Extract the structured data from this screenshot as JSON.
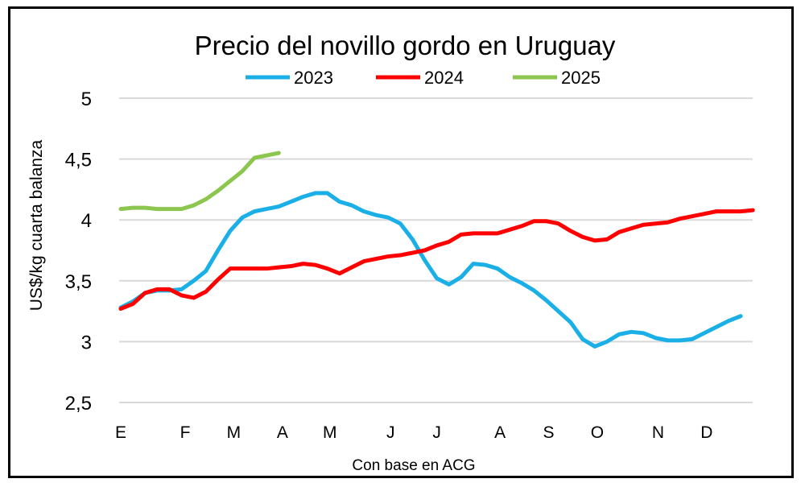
{
  "chart_data": {
    "type": "line",
    "title": "Precio del novillo gordo en Uruguay",
    "xlabel": "Con base en ACG",
    "ylabel": "US$/kg cuarta balanza",
    "ylim": [
      2.5,
      5
    ],
    "yticks": [
      "2,5",
      "3",
      "3,5",
      "4",
      "4,5",
      "5"
    ],
    "ytick_values": [
      2.5,
      3,
      3.5,
      4,
      4.5,
      5
    ],
    "xlim_weeks": [
      0,
      52
    ],
    "xticks": [
      {
        "label": "E",
        "week": 0
      },
      {
        "label": "F",
        "week": 5.3
      },
      {
        "label": "M",
        "week": 9.3
      },
      {
        "label": "A",
        "week": 13.3
      },
      {
        "label": "M",
        "week": 17.2
      },
      {
        "label": "J",
        "week": 22.2
      },
      {
        "label": "J",
        "week": 26
      },
      {
        "label": "A",
        "week": 31.2
      },
      {
        "label": "S",
        "week": 35.2
      },
      {
        "label": "O",
        "week": 39.2
      },
      {
        "label": "N",
        "week": 44.2
      },
      {
        "label": "D",
        "week": 48.2
      }
    ],
    "grid": "horizontal",
    "legend_position": "top",
    "series": [
      {
        "name": "2023",
        "color": "#1aafe6",
        "values": [
          3.28,
          3.33,
          3.4,
          3.42,
          3.42,
          3.43,
          3.5,
          3.58,
          3.75,
          3.91,
          4.02,
          4.07,
          4.09,
          4.11,
          4.15,
          4.19,
          4.22,
          4.22,
          4.15,
          4.12,
          4.07,
          4.04,
          4.02,
          3.97,
          3.84,
          3.67,
          3.52,
          3.47,
          3.53,
          3.64,
          3.63,
          3.6,
          3.53,
          3.48,
          3.42,
          3.34,
          3.25,
          3.16,
          3.02,
          2.96,
          3.0,
          3.06,
          3.08,
          3.07,
          3.03,
          3.01,
          3.01,
          3.02,
          3.07,
          3.12,
          3.17,
          3.21
        ]
      },
      {
        "name": "2024",
        "color": "#ff0000",
        "values": [
          3.27,
          3.31,
          3.4,
          3.43,
          3.43,
          3.38,
          3.36,
          3.41,
          3.51,
          3.6,
          3.6,
          3.6,
          3.6,
          3.61,
          3.62,
          3.64,
          3.63,
          3.6,
          3.56,
          3.61,
          3.66,
          3.68,
          3.7,
          3.71,
          3.73,
          3.75,
          3.79,
          3.82,
          3.88,
          3.89,
          3.89,
          3.89,
          3.92,
          3.95,
          3.99,
          3.99,
          3.97,
          3.91,
          3.86,
          3.83,
          3.84,
          3.9,
          3.93,
          3.96,
          3.97,
          3.98,
          4.01,
          4.03,
          4.05,
          4.07,
          4.07,
          4.07,
          4.08
        ]
      },
      {
        "name": "2025",
        "color": "#8dc64f",
        "values": [
          4.09,
          4.1,
          4.1,
          4.09,
          4.09,
          4.09,
          4.12,
          4.17,
          4.24,
          4.32,
          4.4,
          4.51,
          4.53,
          4.55
        ]
      }
    ]
  }
}
